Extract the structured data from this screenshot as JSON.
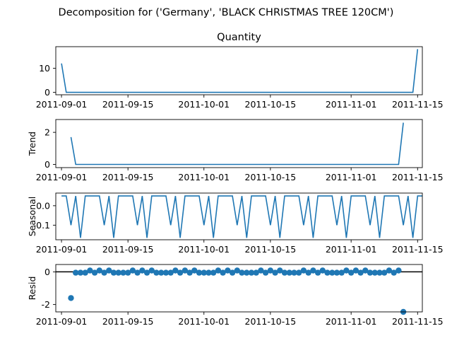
{
  "suptitle": "Decomposition for ('Germany', 'BLACK CHRISTMAS TREE 120CM')",
  "colors": {
    "line": "#1f77b4",
    "axis": "#000000",
    "zero_line": "#000000",
    "background": "#ffffff"
  },
  "x_ticks": [
    "2011-09-01",
    "2011-09-15",
    "2011-10-01",
    "2011-10-15",
    "2011-11-01",
    "2011-11-15"
  ],
  "chart_data": [
    {
      "id": "observed",
      "type": "line",
      "title": "Quantity",
      "ylabel": "",
      "yticks": [
        0,
        10
      ],
      "ylim": [
        -1,
        19
      ],
      "xlim_days": [
        -1.2,
        76.0
      ],
      "x": [
        0,
        1,
        75
      ],
      "y": [
        12,
        0,
        18
      ],
      "note_points": "value 0 holds from day 1 to day 74"
    },
    {
      "id": "trend",
      "type": "line",
      "title": "",
      "ylabel": "Trend",
      "yticks": [
        0,
        2
      ],
      "ylim": [
        -0.2,
        2.8
      ],
      "xlim_days": [
        -1.2,
        76.0
      ],
      "x": [
        2,
        3,
        71,
        72
      ],
      "y": [
        1.7,
        0,
        0,
        2.6
      ]
    },
    {
      "id": "seasonal",
      "type": "line",
      "title": "",
      "ylabel": "Seasonal",
      "yticks": [
        0.0,
        -0.1
      ],
      "ylim": [
        -0.175,
        0.065
      ],
      "xlim_days": [
        -1.2,
        76.0
      ],
      "pattern": [
        0.05,
        0.05,
        -0.1,
        0.05,
        -0.165,
        0.05,
        0.05
      ],
      "x_start": 0,
      "x_end": 76
    },
    {
      "id": "resid",
      "type": "scatter",
      "title": "",
      "ylabel": "Resid",
      "yticks": [
        0,
        -2
      ],
      "ylim": [
        -2.45,
        0.45
      ],
      "xlim_days": [
        -1.2,
        76.0
      ],
      "x": [
        2,
        72
      ],
      "y": [
        -1.6,
        -2.45
      ],
      "near_zero_y": [
        -0.05,
        0.08,
        -0.05,
        -0.05,
        -0.05,
        -0.05,
        0.08,
        -0.05,
        0.08
      ]
    }
  ]
}
